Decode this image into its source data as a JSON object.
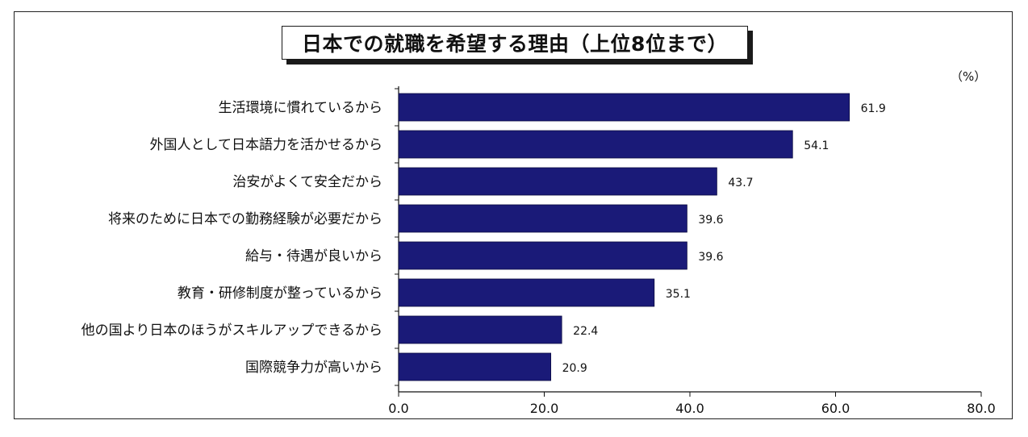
{
  "chart_data": {
    "type": "bar",
    "orientation": "horizontal",
    "title": "日本での就職を希望する理由（上位8位まで）",
    "unit": "（%）",
    "categories": [
      "生活環境に慣れているから",
      "外国人として日本語力を活かせるから",
      "治安がよくて安全だから",
      "将来のために日本での勤務経験が必要だから",
      "給与・待遇が良いから",
      "教育・研修制度が整っているから",
      "他の国より日本のほうがスキルアップできるから",
      "国際競争力が高いから"
    ],
    "values": [
      61.9,
      54.1,
      43.7,
      39.6,
      39.6,
      35.1,
      22.4,
      20.9
    ],
    "value_labels": [
      "61.9",
      "54.1",
      "43.7",
      "39.6",
      "39.6",
      "35.1",
      "22.4",
      "20.9"
    ],
    "xlim": [
      0,
      80
    ],
    "ticks": [
      0,
      20,
      40,
      60,
      80
    ],
    "tick_labels": [
      "0.0",
      "20.0",
      "40.0",
      "60.0",
      "80.0"
    ],
    "bar_color": "#1a1a78",
    "grid": false
  }
}
